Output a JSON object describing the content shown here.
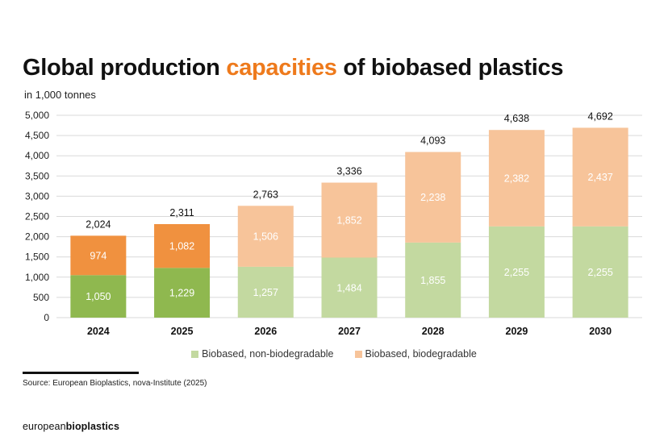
{
  "title": {
    "part1": "Global production ",
    "highlight": "capacities",
    "part2": " of biobased plastics"
  },
  "unit_label": "in 1,000 tonnes",
  "source": "Source: European Bioplastics, nova-Institute (2025)",
  "brand": {
    "regular": "european",
    "bold": "bioplastics"
  },
  "colors": {
    "highlight": "#ee7a1c",
    "grid": "#d9d9d9",
    "nonbio_dark": "#8fb84f",
    "bio_dark": "#f0913f",
    "nonbio_light": "#c3d9a0",
    "bio_light": "#f7c49a"
  },
  "chart_data": {
    "type": "bar",
    "stacked": true,
    "categories": [
      "2024",
      "2025",
      "2026",
      "2027",
      "2028",
      "2029",
      "2030"
    ],
    "series": [
      {
        "name": "Biobased, non-biodegradable",
        "values": [
          1050,
          1229,
          1257,
          1484,
          1855,
          2255,
          2255
        ],
        "labels": [
          "1,050",
          "1,229",
          "1,257",
          "1,484",
          "1,855",
          "2,255",
          "2,255"
        ]
      },
      {
        "name": "Biobased, biodegradable",
        "values": [
          974,
          1082,
          1506,
          1852,
          2238,
          2382,
          2437
        ],
        "labels": [
          "974",
          "1,082",
          "1,506",
          "1,852",
          "2,238",
          "2,382",
          "2,437"
        ]
      }
    ],
    "totals": [
      2024,
      2311,
      2763,
      3336,
      4093,
      4638,
      4692
    ],
    "total_labels": [
      "2,024",
      "2,311",
      "2,763",
      "3,336",
      "4,093",
      "4,638",
      "4,692"
    ],
    "yticks": [
      0,
      500,
      1000,
      1500,
      2000,
      2500,
      3000,
      3500,
      4000,
      4500,
      5000
    ],
    "ytick_labels": [
      "0",
      "500",
      "1,000",
      "1,500",
      "2,000",
      "2,500",
      "3,000",
      "3,500",
      "4,000",
      "4,500",
      "5,000"
    ],
    "ylim": [
      0,
      5000
    ],
    "grid": true,
    "legend_position": "bottom",
    "highlighted_categories": [
      "2024",
      "2025"
    ]
  }
}
